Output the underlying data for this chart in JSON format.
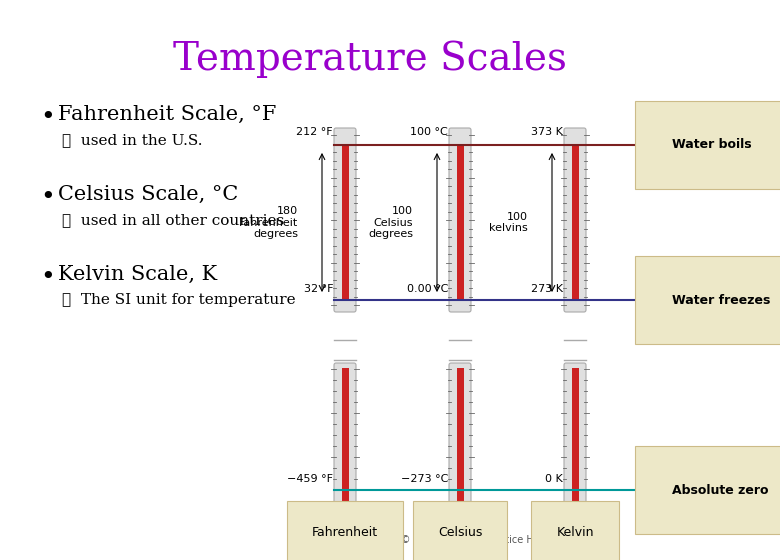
{
  "title": "Temperature Scales",
  "title_color": "#9900CC",
  "title_fontsize": 28,
  "background_color": "#ffffff",
  "bullet_points": [
    {
      "main": "Fahrenheit Scale, °F",
      "sub": "✓  used in the U.S."
    },
    {
      "main": "Celsius Scale, °C",
      "sub": "✓  used in all other countries"
    },
    {
      "main": "Kelvin Scale, K",
      "sub": "✓  The SI unit for temperature"
    }
  ],
  "bullet_main_fontsize": 15,
  "bullet_sub_fontsize": 11,
  "thermometer_labels": [
    "Fahrenheit",
    "Celsius",
    "Kelvin"
  ],
  "water_boils_label": "Water boils",
  "water_freezes_label": "Water freezes",
  "absolute_zero_label": "Absolute zero",
  "boil_line_color": "#7B2020",
  "freeze_line_color": "#333388",
  "abs_zero_color": "#009999",
  "label_box_color": "#EDE8C8",
  "label_box_edge": "#CCBB88",
  "mercury_color": "#CC2222",
  "top_temps": [
    "212 °F",
    "100 °C",
    "373 K"
  ],
  "freeze_temps": [
    "32 °F",
    "0.00 °C",
    "273 K"
  ],
  "bottom_temps": [
    "−459 °F",
    "−273 °C",
    "0 K"
  ],
  "mid_labels": [
    "180\nFahrenheit\ndegrees",
    "100\nCelsius\ndegrees",
    "100\nkelvins"
  ],
  "copyright": "Copyright © 2008 Pearson Prentice Hall, Inc."
}
